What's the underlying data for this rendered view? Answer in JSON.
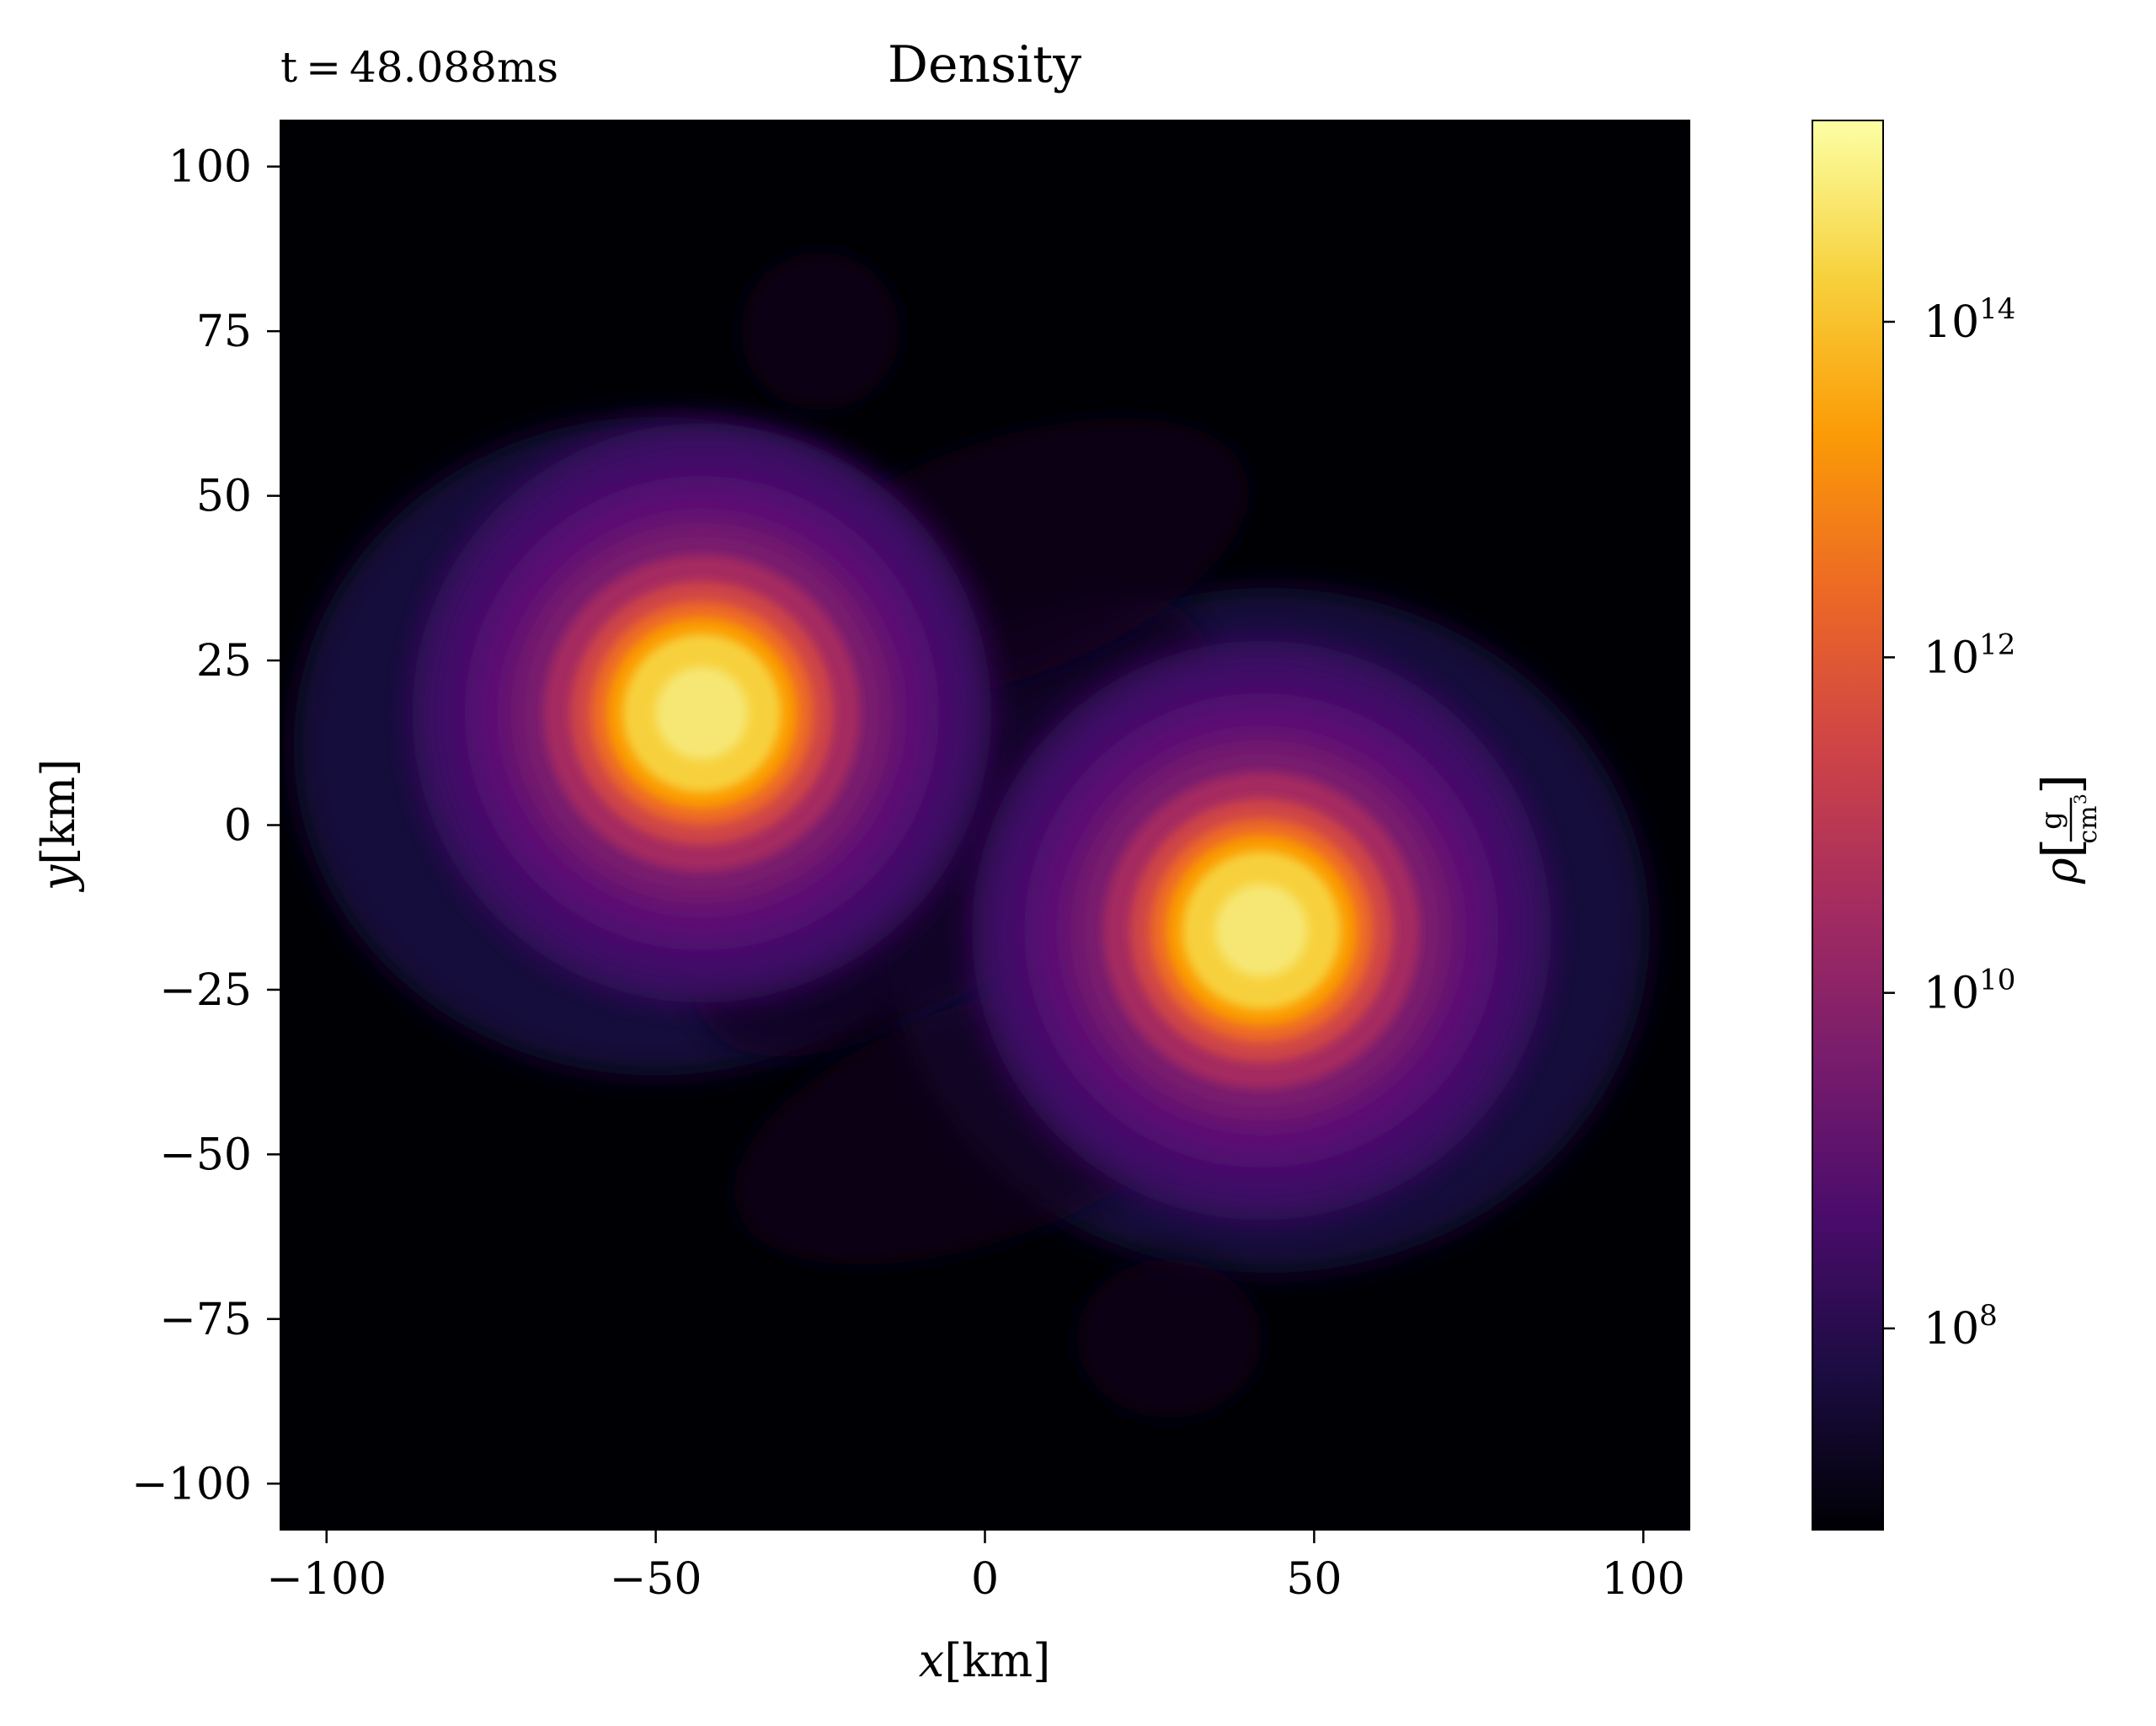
{
  "chart_data": {
    "type": "heatmap",
    "title": "Density",
    "time_label": "t = 48.088ms",
    "x_axis": {
      "label_var": "x",
      "label_unit": "[km]",
      "range": [
        -107,
        107
      ],
      "ticks": [
        -100,
        -50,
        0,
        50,
        100
      ],
      "tick_labels": [
        "−100",
        "−50",
        "0",
        "50",
        "100"
      ]
    },
    "y_axis": {
      "label_var": "y",
      "label_unit": "[km]",
      "range": [
        -107,
        107
      ],
      "ticks": [
        100,
        75,
        50,
        25,
        0,
        -25,
        -50,
        -75,
        -100
      ],
      "tick_labels": [
        "100",
        "75",
        "50",
        "25",
        "0",
        "−25",
        "−50",
        "−75",
        "−100"
      ]
    },
    "colorbar": {
      "label_var": "ρ",
      "label_num": "g",
      "label_den": "cm",
      "label_den_exp": "3",
      "scale": "log",
      "range_log10": [
        6.8,
        15.2
      ],
      "ticks_log10": [
        8,
        10,
        12,
        14
      ],
      "tick_base": "10",
      "tick_exponents": [
        "8",
        "10",
        "12",
        "14"
      ],
      "colormap": "inferno"
    },
    "blobs": [
      {
        "name": "star-left",
        "x": -43,
        "y": 17,
        "peak_log10_density": 15.0
      },
      {
        "name": "star-right",
        "x": 42,
        "y": -16,
        "peak_log10_density": 15.0
      }
    ],
    "colors": {
      "background": "#000004",
      "inferno_stops": [
        "#000004",
        "#1b0c41",
        "#4a0c6b",
        "#781c6d",
        "#a52c60",
        "#cf4446",
        "#ed6925",
        "#fb9b06",
        "#f7d13d",
        "#fcffa4"
      ]
    }
  }
}
